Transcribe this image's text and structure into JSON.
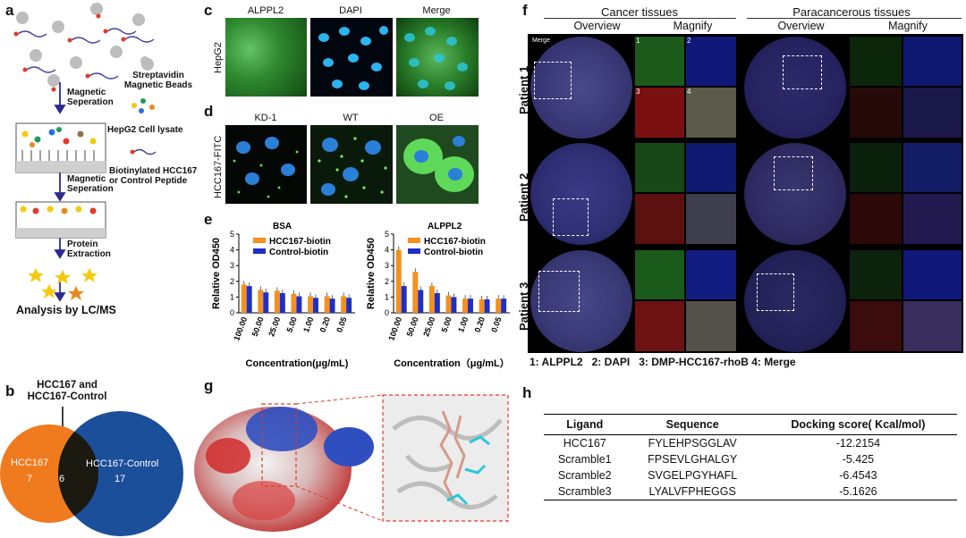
{
  "panel_labels": {
    "a": "a",
    "b": "b",
    "c": "c",
    "d": "d",
    "e": "e",
    "f": "f",
    "g": "g",
    "h": "h"
  },
  "panel_a": {
    "step1": "Magnetic Seperation",
    "step2": "Magnetic Seperation",
    "step3": "Protein Extraction",
    "legend_beads": "Streptavidin Magnetic Beads",
    "legend_lysate": "HepG2 Cell lysate",
    "legend_peptide": "Biotinylated HCC167 or Control Peptide",
    "final": "Analysis by LC/MS"
  },
  "panel_b": {
    "title": "HCC167 and HCC167-Control",
    "left_label": "HCC167",
    "left_count": "7",
    "overlap_count": "6",
    "right_label": "HCC167-Control",
    "right_count": "17",
    "colors": {
      "left": "#f07a1e",
      "right": "#1c4f9a",
      "overlap": "#1a1a10"
    }
  },
  "panel_c": {
    "col_titles": [
      "ALPPL2",
      "DAPI",
      "Merge"
    ],
    "row_label": "HepG2"
  },
  "panel_d": {
    "col_titles": [
      "KD-1",
      "WT",
      "OE"
    ],
    "row_label": "HCC167-FITC"
  },
  "panel_e": {
    "chart_data": [
      {
        "type": "bar",
        "title": "BSA",
        "categories": [
          "100.00",
          "50.00",
          "25.00",
          "5.00",
          "1.00",
          "0.20",
          "0.05"
        ],
        "series": [
          {
            "name": "HCC167-biotin",
            "values": [
              1.8,
              1.45,
              1.4,
              1.2,
              1.05,
              1.05,
              1.05
            ],
            "color": "#f5901e"
          },
          {
            "name": "Control-biotin",
            "values": [
              1.7,
              1.3,
              1.25,
              1.05,
              0.95,
              0.9,
              0.95
            ],
            "color": "#1f2fc6"
          }
        ],
        "xlabel": "Concentration(μg/mL)",
        "ylabel": "Relative OD450",
        "ylim": [
          0,
          5
        ],
        "yticks": [
          "0",
          "1",
          "2",
          "3",
          "4",
          "5"
        ]
      },
      {
        "type": "bar",
        "title": "ALPPL2",
        "categories": [
          "100.00",
          "50.00",
          "25.00",
          "5.00",
          "1.00",
          "0.20",
          "0.05"
        ],
        "series": [
          {
            "name": "HCC167-biotin",
            "values": [
              4.0,
              2.6,
              1.7,
              1.1,
              0.9,
              0.85,
              0.9
            ],
            "color": "#f5901e"
          },
          {
            "name": "Control-biotin",
            "values": [
              1.7,
              1.45,
              1.25,
              1.0,
              0.9,
              0.85,
              0.9
            ],
            "color": "#1f2fc6"
          }
        ],
        "xlabel": "Concentration（μg/mL）",
        "ylabel": "Relative OD450",
        "ylim": [
          0,
          5
        ],
        "yticks": [
          "0",
          "1",
          "2",
          "3",
          "4",
          "5"
        ]
      }
    ]
  },
  "panel_f": {
    "group1": "Cancer tissues",
    "group2": "Paracancerous tissues",
    "overview": "Overview",
    "magnify": "Magnify",
    "merge_tag": "Merge",
    "patients": [
      "Patient 1",
      "Patient 2",
      "Patient 3"
    ],
    "legend": "1: ALPPL2   2: DAPI   3: DMP-HCC167-rhoB 4: Merge",
    "sub_nums": [
      "1",
      "2",
      "3",
      "4"
    ]
  },
  "panel_h": {
    "headers": [
      "Ligand",
      "Sequence",
      "Docking score( Kcal/mol)"
    ],
    "rows": [
      [
        "HCC167",
        "FYLEHPSGGLAV",
        "-12.2154"
      ],
      [
        "Scramble1",
        "FPSEVLGHALGY",
        "-5.425"
      ],
      [
        "Scramble2",
        "SVGELPGYHAFL",
        "-6.4543"
      ],
      [
        "Scramble3",
        "LYALVFPHEGGS",
        "-5.1626"
      ]
    ]
  }
}
